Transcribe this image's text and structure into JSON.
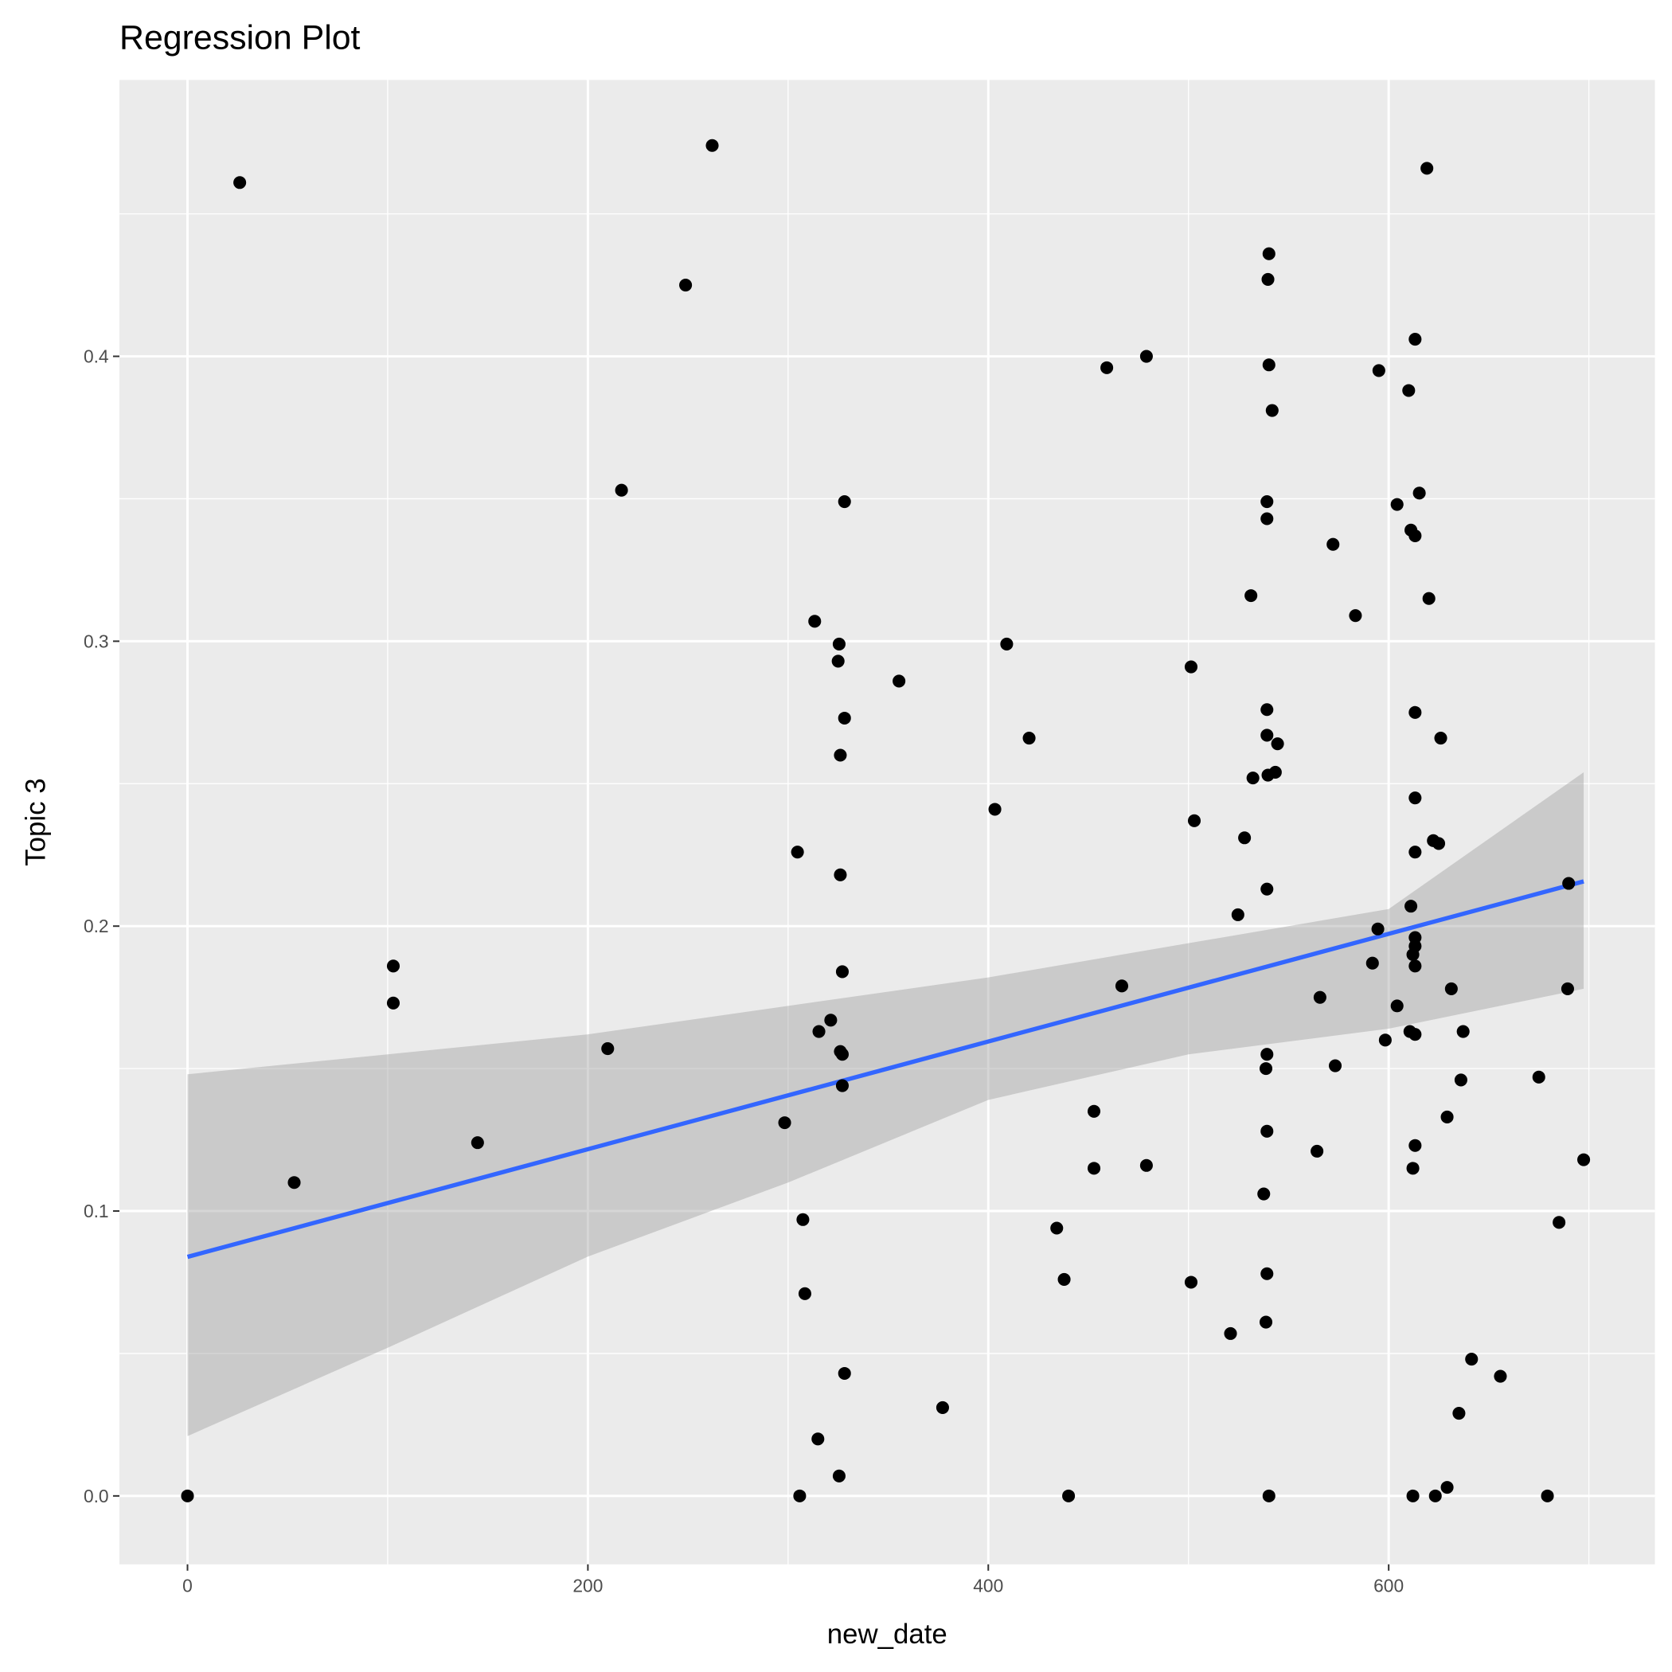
{
  "chart_data": {
    "type": "scatter",
    "title": "Regression Plot",
    "xlabel": "new_date",
    "ylabel": "Topic 3",
    "xlim": [
      -34,
      733
    ],
    "ylim": [
      -0.024,
      0.497
    ],
    "grid": true,
    "x_ticks": [
      0,
      200,
      400,
      600
    ],
    "x_tick_labels": [
      "0",
      "200",
      "400",
      "600"
    ],
    "y_ticks": [
      0,
      0.1,
      0.2,
      0.3,
      0.4
    ],
    "y_tick_labels": [
      "0.0",
      "0.1",
      "0.2",
      "0.3",
      "0.4"
    ],
    "colors": {
      "panel": "#ebebeb",
      "grid": "#ffffff",
      "points": "#000000",
      "line": "#3366ff",
      "band": "#999999"
    },
    "points": [
      [
        26.1,
        0.461
      ],
      [
        262.1,
        0.474
      ],
      [
        619.1,
        0.466
      ],
      [
        248.8,
        0.425
      ],
      [
        540.2,
        0.436
      ],
      [
        539.7,
        0.427
      ],
      [
        613.2,
        0.406
      ],
      [
        459.2,
        0.396
      ],
      [
        479.0,
        0.4
      ],
      [
        540.2,
        0.397
      ],
      [
        595.1,
        0.395
      ],
      [
        610.0,
        0.388
      ],
      [
        541.8,
        0.381
      ],
      [
        216.8,
        0.353
      ],
      [
        328.2,
        0.349
      ],
      [
        539.2,
        0.349
      ],
      [
        615.3,
        0.352
      ],
      [
        604.2,
        0.348
      ],
      [
        539.2,
        0.343
      ],
      [
        611.1,
        0.339
      ],
      [
        613.2,
        0.337
      ],
      [
        572.2,
        0.334
      ],
      [
        531.2,
        0.316
      ],
      [
        620.1,
        0.315
      ],
      [
        583.4,
        0.309
      ],
      [
        313.3,
        0.307
      ],
      [
        325.5,
        0.299
      ],
      [
        409.2,
        0.299
      ],
      [
        325.0,
        0.293
      ],
      [
        501.3,
        0.291
      ],
      [
        355.4,
        0.286
      ],
      [
        328.2,
        0.273
      ],
      [
        539.2,
        0.276
      ],
      [
        613.2,
        0.275
      ],
      [
        420.4,
        0.266
      ],
      [
        539.2,
        0.267
      ],
      [
        544.5,
        0.264
      ],
      [
        626.0,
        0.266
      ],
      [
        326.1,
        0.26
      ],
      [
        532.2,
        0.252
      ],
      [
        539.7,
        0.253
      ],
      [
        543.4,
        0.254
      ],
      [
        613.2,
        0.245
      ],
      [
        403.3,
        0.241
      ],
      [
        502.9,
        0.237
      ],
      [
        528.0,
        0.231
      ],
      [
        622.3,
        0.23
      ],
      [
        625.0,
        0.229
      ],
      [
        304.7,
        0.226
      ],
      [
        613.2,
        0.226
      ],
      [
        326.1,
        0.218
      ],
      [
        539.2,
        0.213
      ],
      [
        689.9,
        0.215
      ],
      [
        611.1,
        0.207
      ],
      [
        524.7,
        0.204
      ],
      [
        102.8,
        0.186
      ],
      [
        327.1,
        0.184
      ],
      [
        594.6,
        0.199
      ],
      [
        613.2,
        0.196
      ],
      [
        613.2,
        0.193
      ],
      [
        612.1,
        0.19
      ],
      [
        613.2,
        0.186
      ],
      [
        591.9,
        0.187
      ],
      [
        102.8,
        0.173
      ],
      [
        466.7,
        0.179
      ],
      [
        631.3,
        0.178
      ],
      [
        689.4,
        0.178
      ],
      [
        565.7,
        0.175
      ],
      [
        604.2,
        0.172
      ],
      [
        321.3,
        0.167
      ],
      [
        315.4,
        0.163
      ],
      [
        610.6,
        0.163
      ],
      [
        613.2,
        0.162
      ],
      [
        637.2,
        0.163
      ],
      [
        598.3,
        0.16
      ],
      [
        209.9,
        0.157
      ],
      [
        326.1,
        0.156
      ],
      [
        327.1,
        0.155
      ],
      [
        539.2,
        0.155
      ],
      [
        573.3,
        0.151
      ],
      [
        538.7,
        0.15
      ],
      [
        675.0,
        0.147
      ],
      [
        636.1,
        0.146
      ],
      [
        327.1,
        0.144
      ],
      [
        452.8,
        0.135
      ],
      [
        629.2,
        0.133
      ],
      [
        298.3,
        0.131
      ],
      [
        539.2,
        0.128
      ],
      [
        144.9,
        0.124
      ],
      [
        613.2,
        0.123
      ],
      [
        564.2,
        0.121
      ],
      [
        53.3,
        0.11
      ],
      [
        697.4,
        0.118
      ],
      [
        452.8,
        0.115
      ],
      [
        479.0,
        0.116
      ],
      [
        612.1,
        0.115
      ],
      [
        537.6,
        0.106
      ],
      [
        307.4,
        0.097
      ],
      [
        434.2,
        0.094
      ],
      [
        685.1,
        0.096
      ],
      [
        437.9,
        0.076
      ],
      [
        501.3,
        0.075
      ],
      [
        539.2,
        0.078
      ],
      [
        308.4,
        0.071
      ],
      [
        538.7,
        0.061
      ],
      [
        521.0,
        0.057
      ],
      [
        641.4,
        0.048
      ],
      [
        328.2,
        0.043
      ],
      [
        655.8,
        0.042
      ],
      [
        377.2,
        0.031
      ],
      [
        635.1,
        0.029
      ],
      [
        314.9,
        0.02
      ],
      [
        325.5,
        0.007
      ],
      [
        629.2,
        0.003
      ],
      [
        0,
        0
      ],
      [
        305.8,
        0
      ],
      [
        440.1,
        0
      ],
      [
        540.2,
        0
      ],
      [
        612.1,
        0
      ],
      [
        623.3,
        0
      ],
      [
        679.3,
        0
      ]
    ],
    "regression": {
      "x": [
        0,
        697.4
      ],
      "y": [
        0.0839,
        0.2157
      ]
    },
    "confidence_band": {
      "x": [
        0,
        100,
        200,
        300,
        400,
        500,
        600,
        697.4
      ],
      "upper": [
        0.148,
        0.155,
        0.162,
        0.172,
        0.182,
        0.194,
        0.206,
        0.254
      ],
      "lower": [
        0.021,
        0.052,
        0.084,
        0.11,
        0.139,
        0.155,
        0.164,
        0.178
      ]
    }
  }
}
